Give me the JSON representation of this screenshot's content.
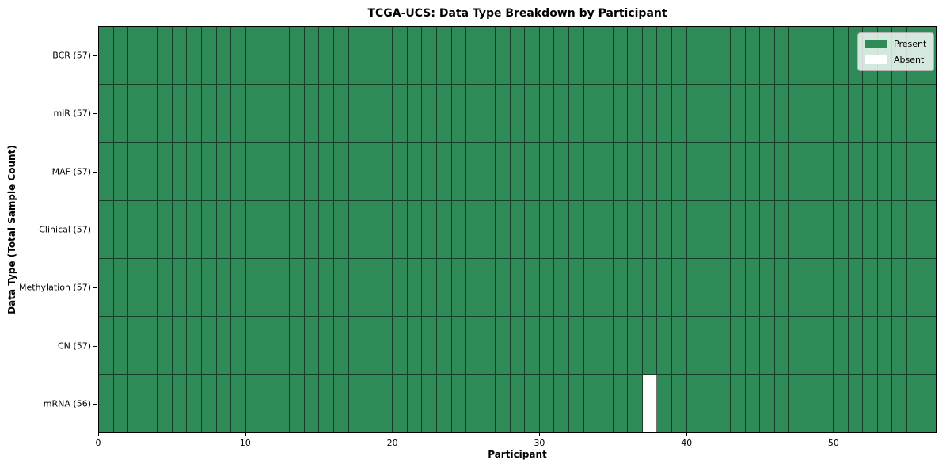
{
  "chart_data": {
    "type": "heatmap",
    "title": "TCGA-UCS: Data Type Breakdown by Participant",
    "xlabel": "Participant",
    "ylabel": "Data Type (Total Sample Count)",
    "x_range": [
      0,
      57
    ],
    "x_ticks": [
      0,
      10,
      20,
      30,
      40,
      50
    ],
    "n_participants": 57,
    "grid": "cell-edges",
    "legend": {
      "position": "upper-right",
      "entries": [
        {
          "label": "Present",
          "color": "#2E8B57"
        },
        {
          "label": "Absent",
          "color": "#FFFFFF"
        }
      ]
    },
    "rows": [
      {
        "label": "BCR (57)",
        "data_type": "BCR",
        "present_count": 57,
        "absent_participants": []
      },
      {
        "label": "miR (57)",
        "data_type": "miR",
        "present_count": 57,
        "absent_participants": []
      },
      {
        "label": "MAF (57)",
        "data_type": "MAF",
        "present_count": 57,
        "absent_participants": []
      },
      {
        "label": "Clinical (57)",
        "data_type": "Clinical",
        "present_count": 57,
        "absent_participants": []
      },
      {
        "label": "Methylation (57)",
        "data_type": "Methylation",
        "present_count": 57,
        "absent_participants": []
      },
      {
        "label": "CN (57)",
        "data_type": "CN",
        "present_count": 57,
        "absent_participants": []
      },
      {
        "label": "mRNA (56)",
        "data_type": "mRNA",
        "present_count": 56,
        "absent_participants": [
          37
        ]
      }
    ],
    "colors": {
      "present": "#2E8B57",
      "absent": "#FFFFFF",
      "cell_edge": "rgba(0,0,0,0.55)",
      "spine": "#000000",
      "background": "#FFFFFF"
    }
  }
}
